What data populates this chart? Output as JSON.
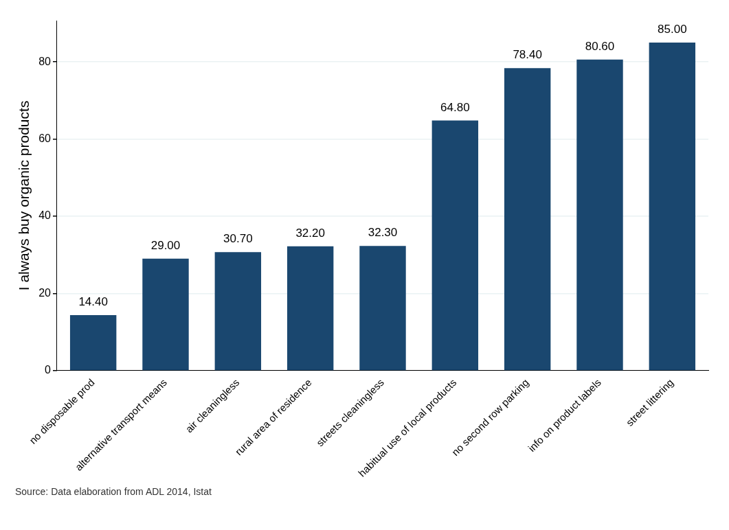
{
  "chart_data": {
    "type": "bar",
    "ylabel": "I always buy organic products",
    "categories": [
      "no disposable prod",
      "alternative transport means",
      "air cleaningless",
      "rural area of residence",
      "streets cleaningless",
      "habitual use of local products",
      "no second row parking",
      "info on product labels",
      "street littering"
    ],
    "values": [
      14.4,
      29.0,
      30.7,
      32.2,
      32.3,
      64.8,
      78.4,
      80.6,
      85.0
    ],
    "value_labels": [
      "14.40",
      "29.00",
      "30.70",
      "32.20",
      "32.30",
      "64.80",
      "78.40",
      "80.60",
      "85.00"
    ],
    "color": "#1a476f",
    "ylim": [
      0,
      90.7
    ],
    "yticks": [
      0,
      20,
      40,
      60,
      80
    ],
    "grid": "y",
    "legend": false,
    "annotations": [
      "Source: Data elaboration from ADL 2014, Istat"
    ]
  }
}
